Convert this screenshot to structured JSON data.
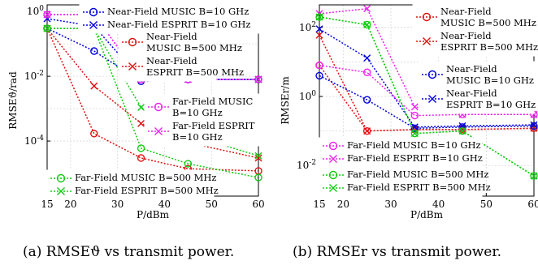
{
  "captions": {
    "a": "(a) RMSEϑ vs transmit power.",
    "b": "(b) RMSEr vs transmit power."
  },
  "colors": {
    "blue": "#0000dd",
    "red": "#e01010",
    "magenta": "#ee22ee",
    "green": "#11cc11"
  },
  "chart_data": [
    {
      "type": "line",
      "panel": "a",
      "xlabel": "P/dBm",
      "ylabel": "RMSEϑ/rad",
      "xlim": [
        15,
        60
      ],
      "ylim": [
        2e-06,
        1.6
      ],
      "yscale": "log",
      "xticks": [
        15,
        20,
        30,
        40,
        50,
        60
      ],
      "yticks": [
        {
          "value": 1,
          "label": "10^0"
        },
        {
          "value": 0.01,
          "label": "10^-2"
        },
        {
          "value": 0.0001,
          "label": "10^-4"
        }
      ],
      "grid": true,
      "legends": [
        {
          "position": "top-right",
          "entries": [
            0,
            1
          ]
        },
        {
          "position": "upper-middle",
          "entries": [
            2,
            3
          ]
        },
        {
          "position": "middle-right",
          "entries": [
            4,
            5
          ]
        },
        {
          "position": "bottom-left",
          "entries": [
            6,
            7
          ]
        }
      ],
      "x": [
        15,
        25,
        35,
        45,
        60
      ],
      "series": [
        {
          "name": "Near-Field  MUSIC  B=10 GHz",
          "color": "blue",
          "marker": "circle",
          "values": [
            0.3,
            0.06,
            0.007,
            0.008,
            0.008
          ]
        },
        {
          "name": "Near-Field  ESPRIT B=10 GHz",
          "color": "blue",
          "marker": "x",
          "values": [
            0.6,
            0.35,
            0.008,
            0.008,
            0.008
          ]
        },
        {
          "name": "Near-Field MUSIC  B=500 MHz",
          "color": "red",
          "marker": "circle",
          "values": [
            0.3,
            0.00017,
            3e-05,
            1.4e-05,
            1.2e-05
          ]
        },
        {
          "name": "Near-Field ESPRIT B=500 MHz",
          "color": "red",
          "marker": "x",
          "values": [
            0.3,
            0.005,
            0.00035,
            9e-05,
            3e-05
          ]
        },
        {
          "name": "Far-Field MUSIC B=10 GHz",
          "color": "magenta",
          "marker": "circle",
          "values": [
            0.8,
            0.8,
            0.008,
            0.008,
            0.008
          ]
        },
        {
          "name": "Far-Field ESPRIT B=10 GHz",
          "color": "magenta",
          "marker": "x",
          "values": [
            0.8,
            0.8,
            0.008,
            0.008,
            0.008
          ]
        },
        {
          "name": "Far-Field  MUSIC  B=500 MHz",
          "color": "green",
          "marker": "circle",
          "values": [
            0.3,
            0.3,
            6e-05,
            2e-05,
            7.5e-06
          ]
        },
        {
          "name": "Far-Field  ESPRIT B=500 MHz",
          "color": "green",
          "marker": "x",
          "values": [
            0.3,
            0.3,
            0.0011,
            0.00016,
            3.5e-05
          ]
        }
      ]
    },
    {
      "type": "line",
      "panel": "b",
      "xlabel": "P/dBm",
      "ylabel": "RMSEr/m",
      "xlim": [
        15,
        60
      ],
      "ylim": [
        0.0013,
        450
      ],
      "yscale": "log",
      "xticks": [
        15,
        20,
        30,
        40,
        50,
        60
      ],
      "yticks": [
        {
          "value": 100,
          "label": "10^2"
        },
        {
          "value": 1,
          "label": "10^0"
        },
        {
          "value": 0.01,
          "label": "10^-2"
        }
      ],
      "grid": true,
      "legends": [
        {
          "position": "top-right",
          "entries": [
            0,
            1
          ]
        },
        {
          "position": "middle-right",
          "entries": [
            2,
            3
          ]
        },
        {
          "position": "lower-left",
          "entries": [
            4,
            5
          ]
        },
        {
          "position": "bottom-left",
          "entries": [
            6,
            7
          ]
        }
      ],
      "x": [
        15,
        25,
        35,
        45,
        60
      ],
      "series": [
        {
          "name": "Near-Field\nMUSIC  B=500 MHz",
          "color": "red",
          "marker": "circle",
          "values": [
            8,
            0.1,
            0.11,
            0.11,
            0.12
          ]
        },
        {
          "name": "Near-Field\nESPRIT B=500 MHz",
          "color": "red",
          "marker": "x",
          "values": [
            60,
            0.1,
            0.11,
            0.11,
            0.12
          ]
        },
        {
          "name": "Near-Field\nMUSIC  B=10 GHz",
          "color": "blue",
          "marker": "circle",
          "values": [
            4,
            0.8,
            0.12,
            0.13,
            0.14
          ]
        },
        {
          "name": "Near-Field\nESPRIT B=10 GHz",
          "color": "blue",
          "marker": "x",
          "values": [
            90,
            13,
            0.13,
            0.14,
            0.15
          ]
        },
        {
          "name": "Far-Field  MUSIC  B=10 GHz",
          "color": "magenta",
          "marker": "circle",
          "values": [
            8,
            5,
            0.28,
            0.3,
            0.3
          ]
        },
        {
          "name": "Far-Field  ESPRIT  B=10 GHz",
          "color": "magenta",
          "marker": "x",
          "values": [
            250,
            350,
            0.5,
            0.3,
            0.3
          ]
        },
        {
          "name": "Far-Field  MUSIC  B=500 MHz",
          "color": "green",
          "marker": "circle",
          "values": [
            200,
            120,
            0.085,
            0.1,
            0.005
          ]
        },
        {
          "name": "Far-Field  ESPRIT  B=500 MHz",
          "color": "green",
          "marker": "x",
          "values": [
            200,
            120,
            0.085,
            0.1,
            0.005
          ]
        }
      ]
    }
  ]
}
